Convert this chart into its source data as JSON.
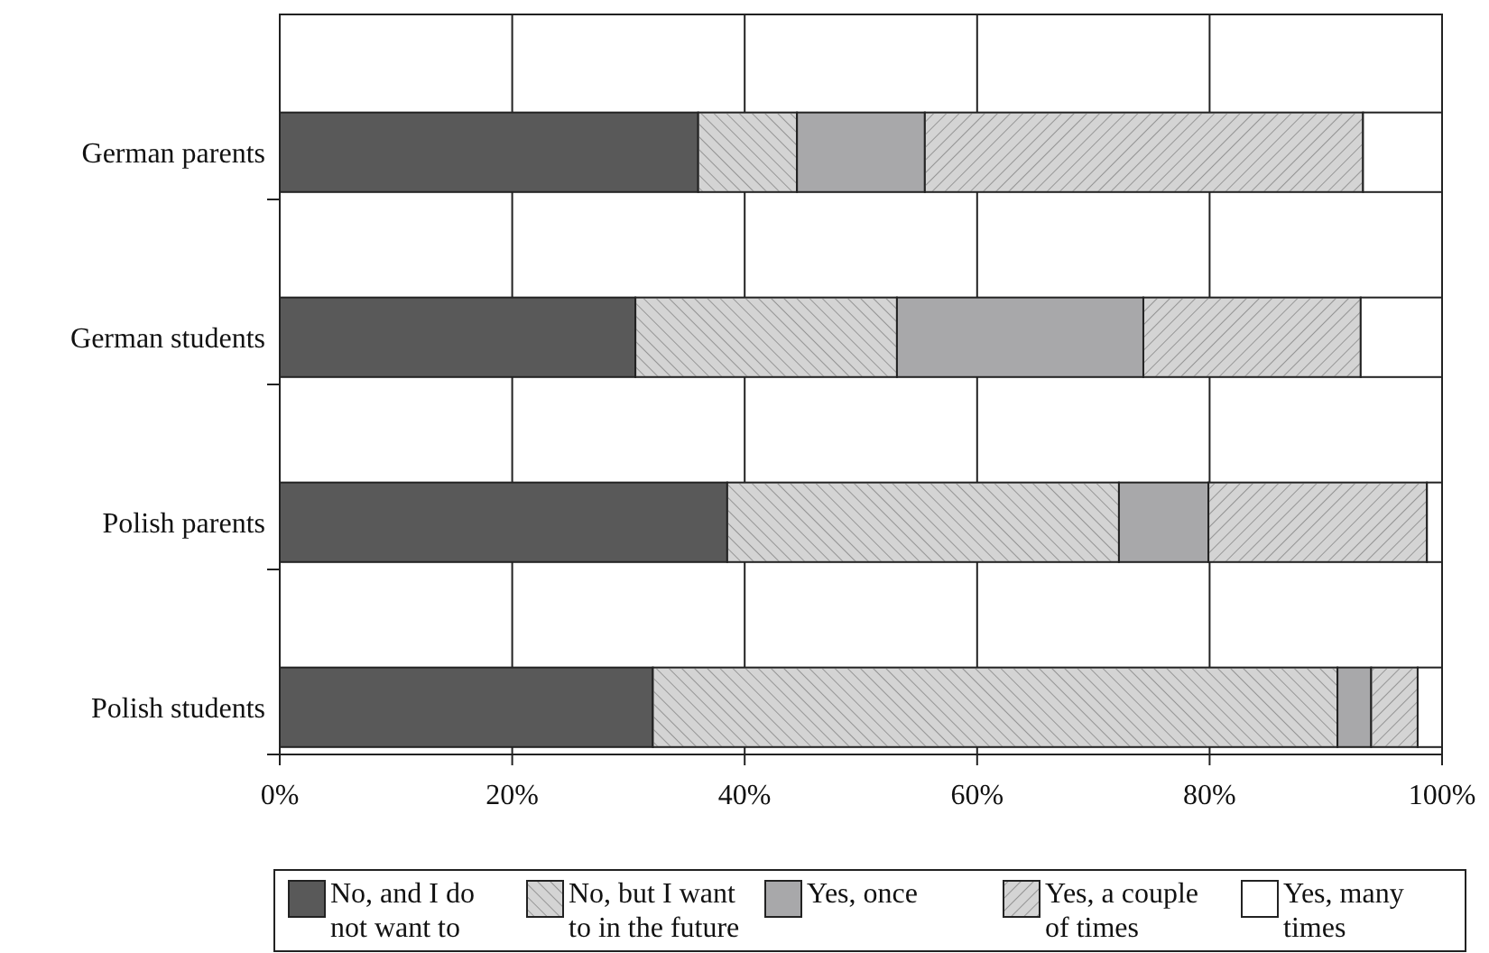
{
  "chart_data": {
    "type": "bar",
    "orientation": "horizontal",
    "stacked": true,
    "categories": [
      "German parents",
      "German students",
      "Polish parents",
      "Polish students"
    ],
    "series": [
      {
        "name": "No, and I do not want to",
        "color": "#595959",
        "values": [
          36.0,
          30.6,
          38.5,
          32.1
        ]
      },
      {
        "name": "No, but I want to in the future",
        "color": "#d4d4d4",
        "values": [
          8.5,
          22.5,
          33.7,
          58.9
        ]
      },
      {
        "name": "Yes, once",
        "color": "#a8a8aa",
        "values": [
          11.0,
          21.2,
          7.7,
          2.9
        ]
      },
      {
        "name": "Yes, a couple of times",
        "color": "#d4d4d4",
        "values": [
          37.7,
          18.7,
          18.8,
          4.0
        ]
      },
      {
        "name": "Yes, many times",
        "color": "#ffffff",
        "values": [
          6.8,
          7.0,
          1.3,
          2.1
        ]
      }
    ],
    "xlim": [
      0,
      100
    ],
    "xticks": [
      {
        "value": 0,
        "label": "0%"
      },
      {
        "value": 20,
        "label": "20%"
      },
      {
        "value": 40,
        "label": "40%"
      },
      {
        "value": 60,
        "label": "60%"
      },
      {
        "value": 80,
        "label": "80%"
      },
      {
        "value": 100,
        "label": "100%"
      }
    ],
    "grid": "x",
    "legend": "bottom"
  }
}
